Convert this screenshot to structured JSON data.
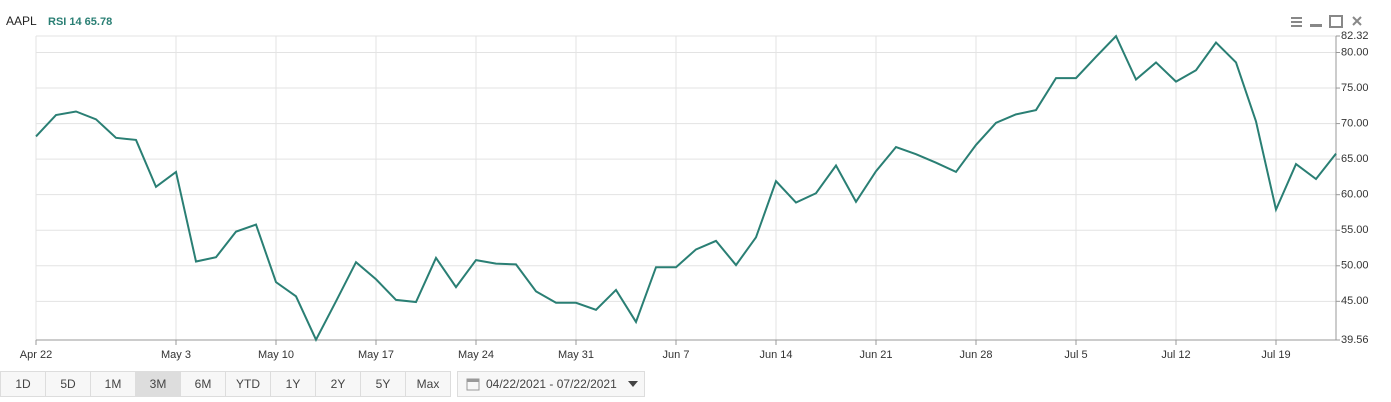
{
  "header": {
    "symbol": "AAPL",
    "indicator": "RSI 14 65.78"
  },
  "chart_data": {
    "type": "line",
    "categories": [
      "Apr 22",
      null,
      null,
      null,
      null,
      null,
      null,
      "May 3",
      null,
      null,
      null,
      null,
      "May 10",
      null,
      null,
      null,
      null,
      "May 17",
      null,
      null,
      null,
      null,
      "May 24",
      null,
      null,
      null,
      null,
      "May 31",
      null,
      null,
      null,
      null,
      "Jun 7",
      null,
      null,
      null,
      null,
      "Jun 14",
      null,
      null,
      null,
      null,
      "Jun 21",
      null,
      null,
      null,
      null,
      "Jun 28",
      null,
      null,
      null,
      null,
      "Jul 5",
      null,
      null,
      null,
      null,
      "Jul 12",
      null,
      null,
      null,
      null,
      "Jul 19",
      null,
      null,
      null
    ],
    "values": [
      68.2,
      71.2,
      71.7,
      70.6,
      68.0,
      67.7,
      61.1,
      63.2,
      50.6,
      51.2,
      54.8,
      55.8,
      47.7,
      45.7,
      39.6,
      45.0,
      50.5,
      48.1,
      45.2,
      44.9,
      51.1,
      47.0,
      50.8,
      50.3,
      50.2,
      46.4,
      44.8,
      44.8,
      43.8,
      46.6,
      42.1,
      49.8,
      49.8,
      52.3,
      53.5,
      50.1,
      54.0,
      61.9,
      58.9,
      60.2,
      64.1,
      59.0,
      63.3,
      66.7,
      65.7,
      64.5,
      63.2,
      67.0,
      70.1,
      71.3,
      71.9,
      76.4,
      76.4,
      79.4,
      82.3,
      76.2,
      78.6,
      75.9,
      77.5,
      81.4,
      78.6,
      70.3,
      57.9,
      64.3,
      62.2,
      65.78
    ],
    "color": "#2a7f74",
    "ylim": [
      39.56,
      82.32
    ],
    "yticks": [
      39.56,
      {
        "value": 45,
        "label": "45.00"
      },
      {
        "value": 50,
        "label": "50.00"
      },
      {
        "value": 55,
        "label": "55.00"
      },
      {
        "value": 60,
        "label": "60.00"
      },
      {
        "value": 65,
        "label": "65.00"
      },
      {
        "value": 70,
        "label": "70.00"
      },
      {
        "value": 75,
        "label": "75.00"
      },
      {
        "value": 80,
        "label": "80.00"
      },
      82.32
    ],
    "grid": true
  },
  "toolbar": {
    "ranges": [
      "1D",
      "5D",
      "1M",
      "3M",
      "6M",
      "YTD",
      "1Y",
      "2Y",
      "5Y",
      "Max"
    ],
    "active": "3M",
    "date_range": "04/22/2021 - 07/22/2021"
  }
}
